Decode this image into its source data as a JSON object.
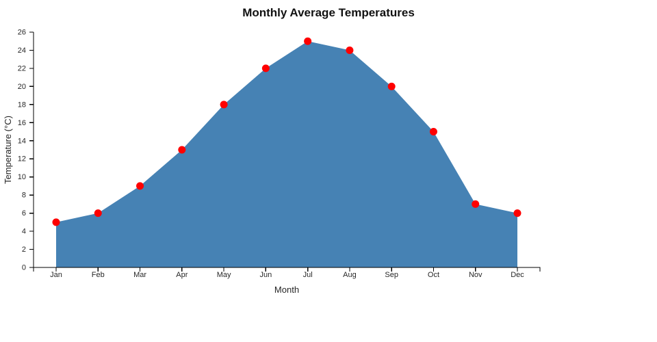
{
  "chart_data": {
    "type": "area",
    "title": "Monthly Average Temperatures",
    "xlabel": "Month",
    "ylabel": "Temperature (°C)",
    "categories": [
      "Jan",
      "Feb",
      "Mar",
      "Apr",
      "May",
      "Jun",
      "Jul",
      "Aug",
      "Sep",
      "Oct",
      "Nov",
      "Dec"
    ],
    "values": [
      5,
      6,
      9,
      13,
      18,
      22,
      25,
      24,
      20,
      15,
      7,
      6
    ],
    "ylim": [
      0,
      26
    ],
    "ytick_step": 2,
    "grid": false,
    "legend": "none",
    "fill_color": "#4682B4",
    "marker_color": "#FF0000",
    "axis_color": "#000000",
    "text_color": "#262626",
    "background_color": "#FFFFFF"
  }
}
